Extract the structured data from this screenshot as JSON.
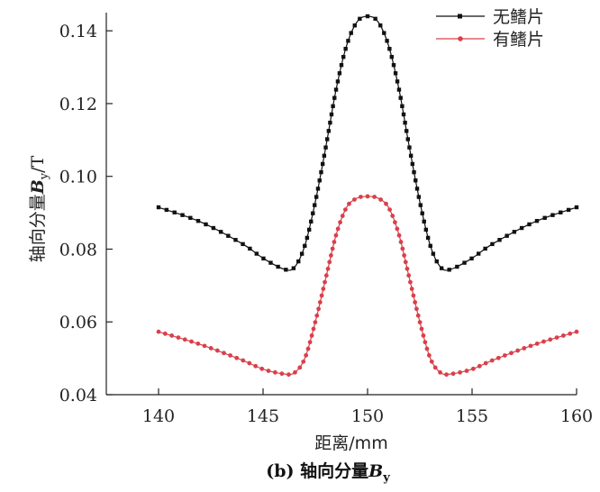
{
  "chart_data": {
    "type": "line",
    "title": "",
    "caption_prefix": "(b) 轴向分量",
    "caption_var": "B",
    "caption_sub": "y",
    "xlabel": "距离/mm",
    "ylabel_prefix": "轴向分量",
    "ylabel_var": "B",
    "ylabel_sub": "y",
    "ylabel_suffix": "/T",
    "xlim": [
      137.5,
      160
    ],
    "ylim": [
      0.04,
      0.145
    ],
    "xticks": [
      140,
      145,
      150,
      155,
      160
    ],
    "yticks": [
      0.04,
      0.06,
      0.08,
      0.1,
      0.12,
      0.14
    ],
    "ytick_labels": [
      "0.04",
      "0.06",
      "0.08",
      "0.10",
      "0.12",
      "0.14"
    ],
    "legend_position": "top-right",
    "series": [
      {
        "name": "无鳍片",
        "color": "#111111",
        "marker": "square",
        "x": [
          140,
          142,
          144,
          145,
          146,
          146.5,
          147,
          147.5,
          148,
          148.5,
          149,
          149.5,
          150,
          150.5,
          151,
          151.5,
          152,
          152.5,
          153,
          153.5,
          154,
          155,
          156,
          158,
          160
        ],
        "y": [
          0.0915,
          0.0875,
          0.0815,
          0.0775,
          0.0745,
          0.075,
          0.081,
          0.093,
          0.108,
          0.124,
          0.136,
          0.1425,
          0.144,
          0.1425,
          0.136,
          0.124,
          0.108,
          0.093,
          0.081,
          0.075,
          0.0745,
          0.0775,
          0.0815,
          0.0875,
          0.0915
        ]
      },
      {
        "name": "有鳍片",
        "color": "#d9404a",
        "marker": "circle",
        "x": [
          140,
          142,
          144,
          145,
          146,
          146.5,
          147,
          147.5,
          148,
          148.5,
          149,
          149.5,
          150,
          150.5,
          151,
          151.5,
          152,
          152.5,
          153,
          153.5,
          154,
          155,
          156,
          158,
          160
        ],
        "y": [
          0.0573,
          0.0538,
          0.0495,
          0.047,
          0.0457,
          0.046,
          0.05,
          0.06,
          0.072,
          0.084,
          0.0915,
          0.094,
          0.0945,
          0.094,
          0.0915,
          0.084,
          0.072,
          0.06,
          0.05,
          0.046,
          0.0457,
          0.047,
          0.0495,
          0.0538,
          0.0573
        ]
      }
    ]
  }
}
